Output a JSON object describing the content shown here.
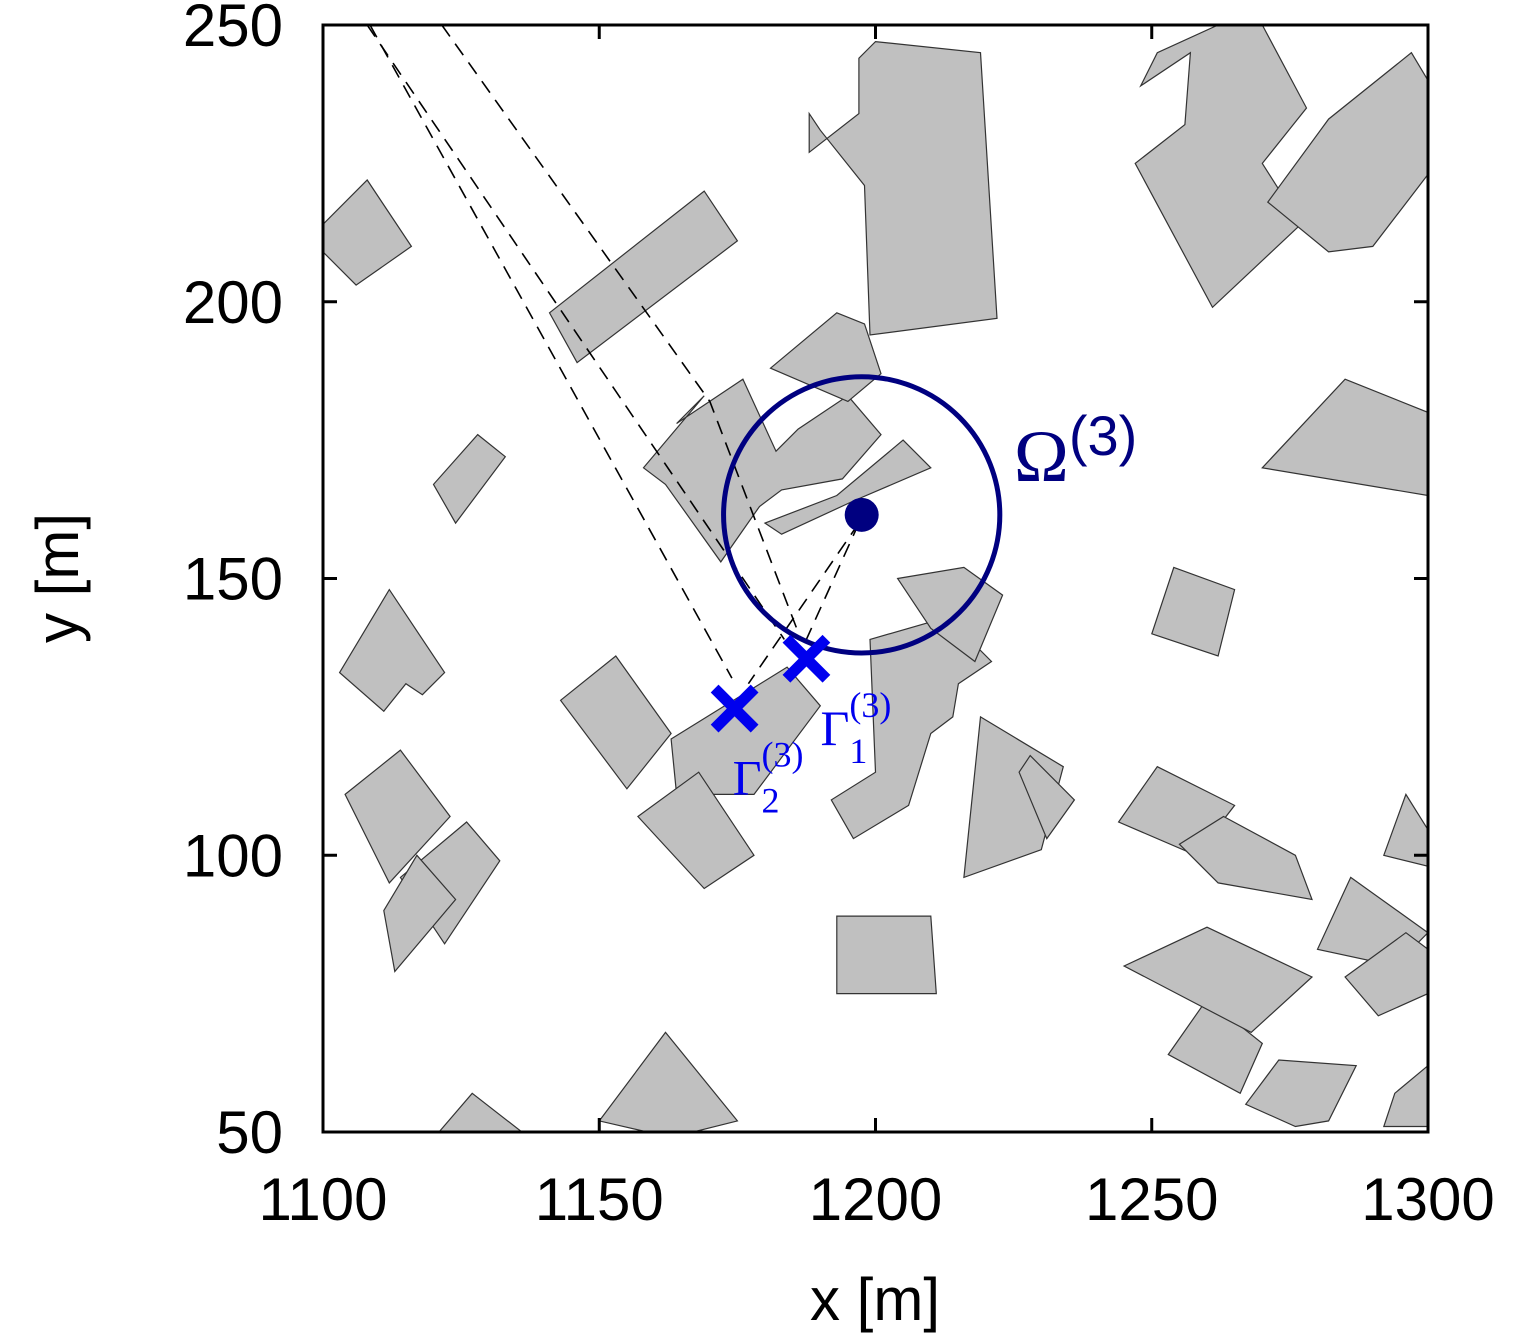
{
  "chart_data": {
    "type": "scatter",
    "xlabel": "x [m]",
    "ylabel": "y [m]",
    "xlim": [
      1100,
      1300
    ],
    "ylim": [
      50,
      250
    ],
    "x_ticks": [
      1100,
      1150,
      1200,
      1250,
      1300
    ],
    "y_ticks": [
      50,
      100,
      150,
      200,
      250
    ],
    "grid": false,
    "colors": {
      "building_fill": "#c0c0c0",
      "building_edge": "#333333",
      "circle": "#000080",
      "markers": "#0000ee",
      "rays": "#000000"
    },
    "region": {
      "name": "Ω",
      "superscript": "(3)",
      "center": [
        1197.5,
        161.5
      ],
      "radius": 25
    },
    "points": [
      {
        "name": "Γ",
        "subscript": "1",
        "superscript": "(3)",
        "x": 1187.5,
        "y": 135.5,
        "marker": "x"
      },
      {
        "name": "Γ",
        "subscript": "2",
        "superscript": "(3)",
        "x": 1174.5,
        "y": 126.5,
        "marker": "x"
      }
    ],
    "rays": [
      {
        "style": "dashed",
        "points": [
          [
            1108,
            250
          ],
          [
            1183.5,
            139
          ]
        ]
      },
      {
        "style": "dashed",
        "points": [
          [
            1121.5,
            250
          ],
          [
            1170,
            182
          ],
          [
            1186.5,
            139
          ]
        ]
      },
      {
        "style": "dashed",
        "points": [
          [
            1108.5,
            250
          ],
          [
            1174,
            132
          ]
        ]
      },
      {
        "style": "dashed",
        "points": [
          [
            1197,
            160
          ],
          [
            1187.5,
            139
          ]
        ]
      },
      {
        "style": "dashed",
        "points": [
          [
            1197,
            160
          ],
          [
            1177,
            131
          ]
        ]
      }
    ],
    "buildings": [
      [
        [
          1100,
          214
        ],
        [
          1108,
          222
        ],
        [
          1116,
          210
        ],
        [
          1106,
          203
        ],
        [
          1100,
          209
        ]
      ],
      [
        [
          1141,
          198
        ],
        [
          1169,
          220
        ],
        [
          1175,
          211
        ],
        [
          1146,
          189
        ]
      ],
      [
        [
          1164,
          178
        ],
        [
          1176,
          186
        ],
        [
          1182,
          173
        ],
        [
          1186,
          177
        ],
        [
          1195,
          183
        ],
        [
          1201,
          176
        ],
        [
          1194,
          168
        ],
        [
          1183,
          166
        ],
        [
          1179,
          163
        ],
        [
          1172,
          153
        ],
        [
          1162,
          167
        ],
        [
          1158,
          170
        ],
        [
          1169,
          183
        ]
      ],
      [
        [
          1180,
          160
        ],
        [
          1193,
          165
        ],
        [
          1205,
          175
        ],
        [
          1210,
          170
        ],
        [
          1196,
          164
        ],
        [
          1183,
          158
        ]
      ],
      [
        [
          1188,
          227
        ],
        [
          1197,
          234
        ],
        [
          1197,
          244
        ],
        [
          1200,
          247
        ],
        [
          1219,
          245
        ],
        [
          1222,
          197
        ],
        [
          1199,
          194
        ],
        [
          1198,
          221
        ],
        [
          1190,
          231
        ],
        [
          1188,
          234
        ]
      ],
      [
        [
          1181,
          188
        ],
        [
          1193,
          198
        ],
        [
          1198,
          196
        ],
        [
          1201,
          187
        ],
        [
          1195,
          182
        ],
        [
          1188,
          185
        ]
      ],
      [
        [
          1248,
          239
        ],
        [
          1257,
          245
        ],
        [
          1256,
          232
        ],
        [
          1247,
          225
        ],
        [
          1261,
          199
        ],
        [
          1277,
          214
        ],
        [
          1270,
          225
        ],
        [
          1278,
          235
        ],
        [
          1270,
          250
        ],
        [
          1262,
          250
        ],
        [
          1251,
          245
        ]
      ],
      [
        [
          1271,
          218
        ],
        [
          1282,
          233
        ],
        [
          1297,
          245
        ],
        [
          1300,
          240
        ],
        [
          1300,
          223
        ],
        [
          1290,
          210
        ],
        [
          1282,
          209
        ]
      ],
      [
        [
          1120,
          167
        ],
        [
          1124,
          160
        ],
        [
          1133,
          172
        ],
        [
          1128,
          176
        ]
      ],
      [
        [
          1103,
          133
        ],
        [
          1112,
          148
        ],
        [
          1122,
          133
        ],
        [
          1118,
          129
        ],
        [
          1115,
          131
        ],
        [
          1111,
          126
        ]
      ],
      [
        [
          1163,
          121
        ],
        [
          1184,
          134
        ],
        [
          1190,
          127
        ],
        [
          1178,
          111
        ],
        [
          1164,
          111
        ]
      ],
      [
        [
          1143,
          128
        ],
        [
          1153,
          136
        ],
        [
          1163,
          122
        ],
        [
          1155,
          112
        ]
      ],
      [
        [
          1157,
          107
        ],
        [
          1168,
          115
        ],
        [
          1178,
          100
        ],
        [
          1169,
          94
        ]
      ],
      [
        [
          1193,
          75
        ],
        [
          1211,
          75
        ],
        [
          1210,
          89
        ],
        [
          1193,
          89
        ]
      ],
      [
        [
          1199,
          139
        ],
        [
          1213,
          143
        ],
        [
          1221,
          135
        ],
        [
          1215,
          131
        ],
        [
          1214,
          125
        ],
        [
          1210,
          122
        ],
        [
          1206,
          109
        ],
        [
          1196,
          103
        ],
        [
          1192,
          110
        ],
        [
          1200,
          115
        ]
      ],
      [
        [
          1204,
          150
        ],
        [
          1216,
          152
        ],
        [
          1223,
          147
        ],
        [
          1218,
          135
        ],
        [
          1210,
          141
        ]
      ],
      [
        [
          1219,
          125
        ],
        [
          1234,
          116
        ],
        [
          1230,
          101
        ],
        [
          1216,
          96
        ]
      ],
      [
        [
          1226,
          115
        ],
        [
          1231,
          103
        ],
        [
          1236,
          110
        ],
        [
          1228,
          118
        ]
      ],
      [
        [
          1254,
          152
        ],
        [
          1265,
          148
        ],
        [
          1262,
          136
        ],
        [
          1250,
          140
        ]
      ],
      [
        [
          1251,
          116
        ],
        [
          1265,
          109
        ],
        [
          1258,
          100
        ],
        [
          1244,
          106
        ]
      ],
      [
        [
          1263,
          107
        ],
        [
          1276,
          100
        ],
        [
          1279,
          92
        ],
        [
          1262,
          95
        ],
        [
          1255,
          102
        ]
      ],
      [
        [
          1270,
          170
        ],
        [
          1285,
          186
        ],
        [
          1300,
          180
        ],
        [
          1300,
          165
        ]
      ],
      [
        [
          1301,
          103
        ],
        [
          1296,
          111
        ],
        [
          1292,
          100
        ],
        [
          1300,
          98
        ]
      ],
      [
        [
          1286,
          96
        ],
        [
          1300,
          86
        ],
        [
          1294,
          80
        ],
        [
          1280,
          83
        ]
      ],
      [
        [
          1253,
          64
        ],
        [
          1260,
          74
        ],
        [
          1270,
          66
        ],
        [
          1266,
          57
        ]
      ],
      [
        [
          1267,
          55
        ],
        [
          1273,
          63
        ],
        [
          1287,
          62
        ],
        [
          1282,
          52
        ],
        [
          1276,
          51
        ]
      ],
      [
        [
          1114,
          96
        ],
        [
          1126,
          106
        ],
        [
          1132,
          99
        ],
        [
          1122,
          84
        ]
      ],
      [
        [
          1111,
          90
        ],
        [
          1117,
          100
        ],
        [
          1124,
          92
        ],
        [
          1113,
          79
        ]
      ],
      [
        [
          1104,
          111
        ],
        [
          1114,
          119
        ],
        [
          1123,
          107
        ],
        [
          1112,
          95
        ]
      ],
      [
        [
          1150,
          52
        ],
        [
          1162,
          68
        ],
        [
          1175,
          52
        ],
        [
          1163,
          49
        ]
      ],
      [
        [
          1121,
          50
        ],
        [
          1127,
          57
        ],
        [
          1136,
          50
        ]
      ],
      [
        [
          1245,
          80
        ],
        [
          1260,
          87
        ],
        [
          1279,
          78
        ],
        [
          1268,
          68
        ]
      ],
      [
        [
          1285,
          78
        ],
        [
          1296,
          86
        ],
        [
          1300,
          83
        ],
        [
          1300,
          75
        ],
        [
          1291,
          71
        ]
      ],
      [
        [
          1294,
          57
        ],
        [
          1300,
          62
        ],
        [
          1300,
          51
        ],
        [
          1292,
          51
        ]
      ]
    ]
  }
}
